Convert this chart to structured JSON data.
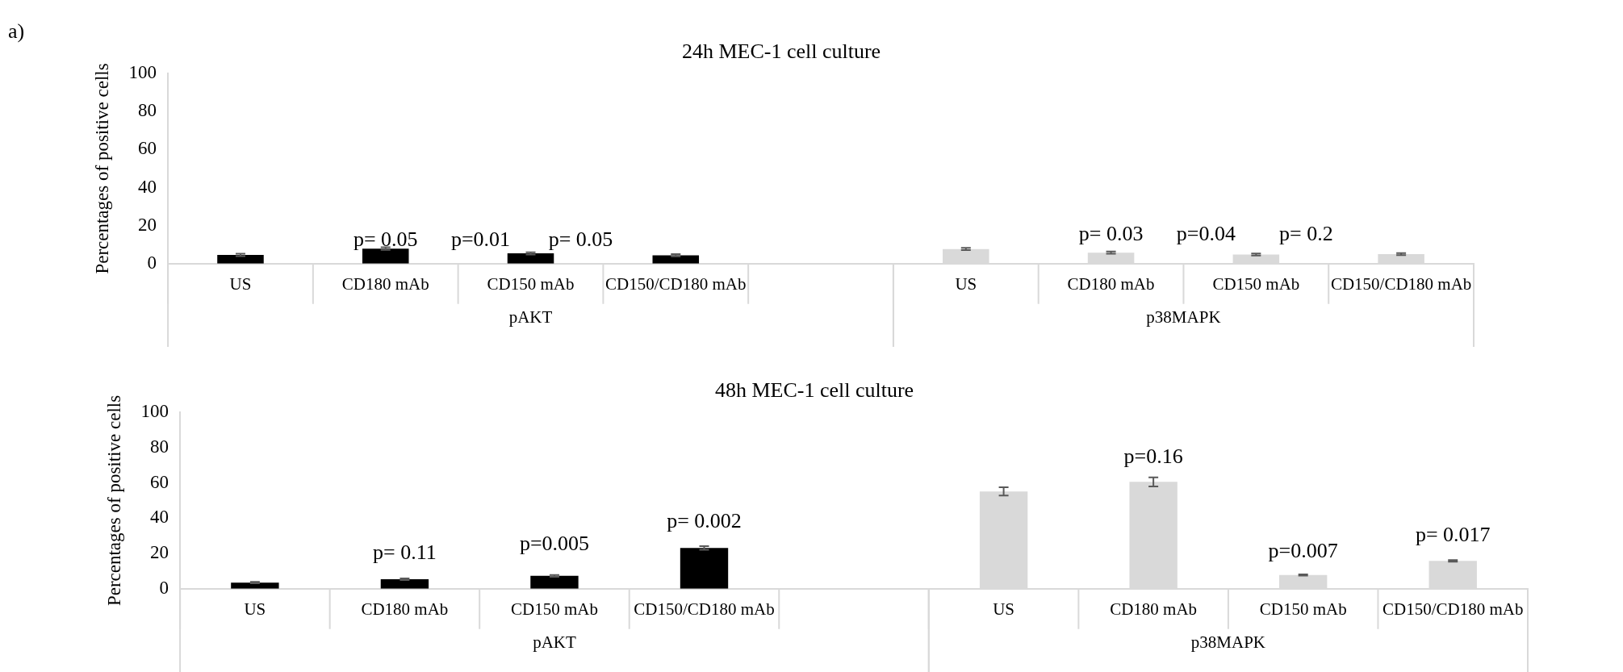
{
  "chart_data": [
    {
      "type": "bar",
      "title": "24h MEC-1 cell culture",
      "ylabel": "Percentages of positive cells",
      "categories": [
        "US",
        "CD180 mAb",
        "CD150 mAb",
        "CD150/CD180 mAb",
        null,
        "US",
        "CD180 mAb",
        "CD150 mAb",
        "CD150/CD180 mAb"
      ],
      "series": [
        {
          "name": "pAKT",
          "color": "#000000",
          "values": [
            4.6,
            7.9,
            5.4,
            4.4,
            null,
            null,
            null,
            null,
            null
          ],
          "errors": [
            0.6,
            0.7,
            0.6,
            0.6,
            null,
            null,
            null,
            null,
            null
          ]
        },
        {
          "name": "p38MAPK",
          "color": "#d9d9d9",
          "values": [
            null,
            null,
            null,
            null,
            null,
            7.7,
            5.8,
            4.8,
            5.0
          ],
          "errors": [
            null,
            null,
            null,
            null,
            null,
            0.6,
            0.6,
            0.5,
            0.5
          ]
        }
      ],
      "ylim": [
        0,
        100
      ],
      "yticks": [
        0,
        20,
        40,
        60,
        80,
        100
      ],
      "annotations": [
        "a)",
        "p= 0.05",
        "p=0.01",
        "p= 0.05",
        "p= 0.03",
        "p=0.04",
        "p= 0.2"
      ]
    },
    {
      "type": "bar",
      "title": "48h MEC-1 cell culture",
      "ylabel": "Percentages of positive cells",
      "categories": [
        "US",
        "CD180 mAb",
        "CD150 mAb",
        "CD150/CD180 mAb",
        null,
        "US",
        "CD180 mAb",
        "CD150 mAb",
        "CD150/CD180 mAb"
      ],
      "series": [
        {
          "name": "pAKT",
          "color": "#000000",
          "values": [
            3.5,
            5.4,
            7.3,
            23.1,
            null,
            null,
            null,
            null,
            null
          ],
          "errors": [
            0.4,
            0.5,
            0.5,
            1.0,
            null,
            null,
            null,
            null,
            null
          ]
        },
        {
          "name": "p38MAPK",
          "color": "#d9d9d9",
          "values": [
            null,
            null,
            null,
            null,
            null,
            55.2,
            60.6,
            7.8,
            15.8
          ],
          "errors": [
            null,
            null,
            null,
            null,
            null,
            2.3,
            2.6,
            0.4,
            0.5
          ]
        }
      ],
      "ylim": [
        0,
        100
      ],
      "yticks": [
        0,
        20,
        40,
        60,
        80,
        100
      ],
      "annotations": [
        "p= 0.11",
        "p=0.005",
        "p= 0.002",
        "p=0.16",
        "p=0.007",
        "p= 0.017"
      ]
    }
  ]
}
